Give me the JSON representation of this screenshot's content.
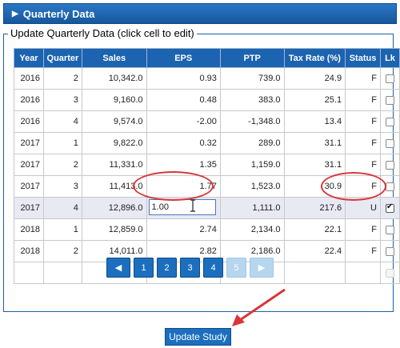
{
  "panel": {
    "title": "Quarterly Data"
  },
  "section": {
    "legend": "Update Quarterly Data (click cell to edit)"
  },
  "table": {
    "headers": [
      "Year",
      "Quarter",
      "Sales",
      "EPS",
      "PTP",
      "Tax Rate (%)",
      "Status",
      "Lk"
    ],
    "rows": [
      {
        "year": "2016",
        "quarter": "2",
        "sales": "10,342.0",
        "eps": "0.93",
        "ptp": "739.0",
        "tax": "24.9",
        "status": "F",
        "lk": false
      },
      {
        "year": "2016",
        "quarter": "3",
        "sales": "9,160.0",
        "eps": "0.48",
        "ptp": "383.0",
        "tax": "25.1",
        "status": "F",
        "lk": false
      },
      {
        "year": "2016",
        "quarter": "4",
        "sales": "9,574.0",
        "eps": "-2.00",
        "ptp": "-1,348.0",
        "tax": "13.4",
        "status": "F",
        "lk": false
      },
      {
        "year": "2017",
        "quarter": "1",
        "sales": "9,822.0",
        "eps": "0.32",
        "ptp": "289.0",
        "tax": "31.1",
        "status": "F",
        "lk": false
      },
      {
        "year": "2017",
        "quarter": "2",
        "sales": "11,331.0",
        "eps": "1.35",
        "ptp": "1,159.0",
        "tax": "31.1",
        "status": "F",
        "lk": false
      },
      {
        "year": "2017",
        "quarter": "3",
        "sales": "11,413.0",
        "eps": "1.77",
        "ptp": "1,523.0",
        "tax": "30.9",
        "status": "F",
        "lk": false
      },
      {
        "year": "2017",
        "quarter": "4",
        "sales": "12,896.0",
        "eps": "",
        "ptp": "1,111.0",
        "tax": "217.6",
        "status": "U",
        "lk": true
      },
      {
        "year": "2018",
        "quarter": "1",
        "sales": "12,859.0",
        "eps": "2.74",
        "ptp": "2,134.0",
        "tax": "22.1",
        "status": "F",
        "lk": false
      },
      {
        "year": "2018",
        "quarter": "2",
        "sales": "14,011.0",
        "eps": "2.82",
        "ptp": "2,186.0",
        "tax": "22.4",
        "status": "F",
        "lk": false
      }
    ],
    "edit_value": "1.00"
  },
  "pagination": {
    "pages": [
      "1",
      "2",
      "3",
      "4",
      "5"
    ],
    "prev_icon": "chevron-left-icon",
    "next_icon": "chevron-right-icon",
    "active_disabled_page": "5"
  },
  "actions": {
    "update_label": "Update Study"
  },
  "colors": {
    "accent": "#1c63b0",
    "annotation": "#d9363a",
    "selected_row": "#e7e9f3"
  }
}
